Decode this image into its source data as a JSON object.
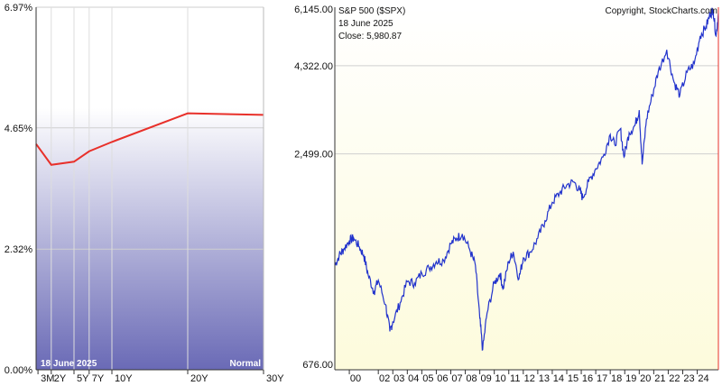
{
  "chart_data": [
    {
      "type": "line",
      "panel": "yield-curve",
      "title": "",
      "xlabel": "",
      "ylabel": "",
      "categories": [
        "3M",
        "2Y",
        "5Y",
        "7Y",
        "10Y",
        "20Y",
        "30Y"
      ],
      "x_years": [
        0.25,
        2,
        5,
        7,
        10,
        20,
        30
      ],
      "values": [
        4.34,
        3.94,
        4.0,
        4.2,
        4.38,
        4.93,
        4.9
      ],
      "yticks": [
        "6.97%",
        "4.65%",
        "2.32%",
        "0.00%"
      ],
      "ytick_values": [
        6.97,
        4.65,
        2.32,
        0.0
      ],
      "ylim": [
        0,
        6.97
      ],
      "date_label": "18  June 2025",
      "shape_label": "Normal",
      "line_color": "#e8302a",
      "grid": true
    },
    {
      "type": "line",
      "panel": "sp500",
      "title": "S&P 500 ($SPX)",
      "date_label": "18  June 2025",
      "close_label": "Close: 5,980.87",
      "copyright": "Copyright, StockCharts.com",
      "scale": "log",
      "yticks": [
        "6,145.00",
        "4,322.00",
        "2,499.00",
        "676.00"
      ],
      "ytick_values": [
        6145,
        4322,
        2499,
        676
      ],
      "ylim": [
        676,
        6145
      ],
      "xticks": [
        "00",
        "02",
        "03",
        "04",
        "05",
        "06",
        "07",
        "08",
        "09",
        "10",
        "11",
        "12",
        "13",
        "14",
        "15",
        "16",
        "17",
        "18",
        "19",
        "20",
        "21",
        "22",
        "23",
        "24"
      ],
      "xtick_years": [
        2000,
        2002,
        2003,
        2004,
        2005,
        2006,
        2007,
        2008,
        2009,
        2010,
        2011,
        2012,
        2013,
        2014,
        2015,
        2016,
        2017,
        2018,
        2019,
        2020,
        2021,
        2022,
        2023,
        2024
      ],
      "line_color": "#2233cc",
      "series": [
        {
          "x": [
            1999.0,
            1999.3,
            1999.6,
            2000.0,
            2000.3,
            2000.7,
            2001.0,
            2001.3,
            2001.7,
            2002.0,
            2002.5,
            2002.8,
            2003.0,
            2003.5,
            2004.0,
            2004.5,
            2005.0,
            2005.5,
            2006.0,
            2006.5,
            2007.0,
            2007.4,
            2007.8,
            2008.3,
            2008.7,
            2009.0,
            2009.2,
            2009.5,
            2010.0,
            2010.4,
            2010.6,
            2011.0,
            2011.3,
            2011.7,
            2012.0,
            2012.5,
            2013.0,
            2013.5,
            2014.0,
            2014.5,
            2015.0,
            2015.5,
            2015.9,
            2016.1,
            2016.5,
            2017.0,
            2017.5,
            2018.0,
            2018.3,
            2018.7,
            2018.95,
            2019.3,
            2019.7,
            2020.0,
            2020.2,
            2020.5,
            2020.9,
            2021.3,
            2021.9,
            2022.4,
            2022.8,
            2023.3,
            2023.8,
            2024.2,
            2024.6,
            2024.9,
            2025.1,
            2025.3,
            2025.46
          ],
          "y": [
            1250,
            1330,
            1380,
            1460,
            1480,
            1400,
            1330,
            1180,
            1060,
            1140,
            980,
            830,
            880,
            990,
            1130,
            1120,
            1190,
            1230,
            1280,
            1290,
            1430,
            1480,
            1520,
            1380,
            1250,
            900,
            740,
            930,
            1120,
            1190,
            1080,
            1280,
            1360,
            1150,
            1310,
            1360,
            1480,
            1650,
            1850,
            1960,
            2060,
            2100,
            1990,
            1900,
            2100,
            2280,
            2450,
            2820,
            2650,
            2920,
            2450,
            2850,
            2980,
            3280,
            2340,
            3100,
            3600,
            4150,
            4770,
            3900,
            3600,
            4150,
            4380,
            5200,
            5500,
            5960,
            6110,
            5200,
            5980.87
          ]
        }
      ]
    }
  ]
}
